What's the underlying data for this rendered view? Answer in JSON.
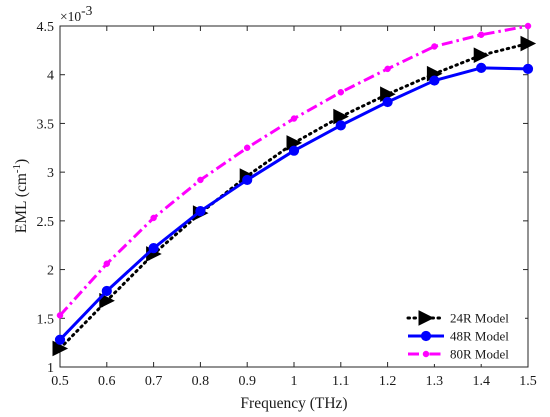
{
  "chart_data": {
    "type": "line",
    "xlabel": "Frequency (THz)",
    "ylabel": "EML (cm",
    "ylabel_sup": "-1",
    "ylabel_end": ")",
    "y_exponent_label": "×10",
    "y_exponent_power": "-3",
    "xlim": [
      0.5,
      1.5
    ],
    "ylim": [
      1,
      4.5
    ],
    "x_ticks": [
      0.5,
      0.6,
      0.7,
      0.8,
      0.9,
      1.0,
      1.1,
      1.2,
      1.3,
      1.4,
      1.5
    ],
    "x_tick_labels": [
      "0.5",
      "0.6",
      "0.7",
      "0.8",
      "0.9",
      "1",
      "1.1",
      "1.2",
      "1.3",
      "1.4",
      "1.5"
    ],
    "y_ticks": [
      1,
      1.5,
      2,
      2.5,
      3,
      3.5,
      4,
      4.5
    ],
    "y_tick_labels": [
      "1",
      "1.5",
      "2",
      "2.5",
      "3",
      "3.5",
      "4",
      "4.5"
    ],
    "grid": false,
    "legend_position": "bottom-right",
    "x": [
      0.5,
      0.6,
      0.7,
      0.8,
      0.9,
      1.0,
      1.1,
      1.2,
      1.3,
      1.4,
      1.5
    ],
    "series": [
      {
        "name": "24R Model",
        "values": [
          1.19,
          1.68,
          2.16,
          2.58,
          2.96,
          3.3,
          3.57,
          3.8,
          4.01,
          4.2,
          4.32
        ],
        "color": "#000000",
        "line_style": "dotted",
        "marker": "triangle-right"
      },
      {
        "name": "48R Model",
        "values": [
          1.28,
          1.78,
          2.22,
          2.6,
          2.92,
          3.22,
          3.48,
          3.72,
          3.94,
          4.07,
          4.06
        ],
        "color": "#0000ff",
        "line_style": "solid",
        "marker": "circle"
      },
      {
        "name": "80R Model",
        "values": [
          1.53,
          2.06,
          2.53,
          2.92,
          3.25,
          3.55,
          3.82,
          4.06,
          4.29,
          4.41,
          4.5
        ],
        "color": "#ff00ff",
        "line_style": "dash-dot",
        "marker": "small-circle"
      }
    ]
  }
}
